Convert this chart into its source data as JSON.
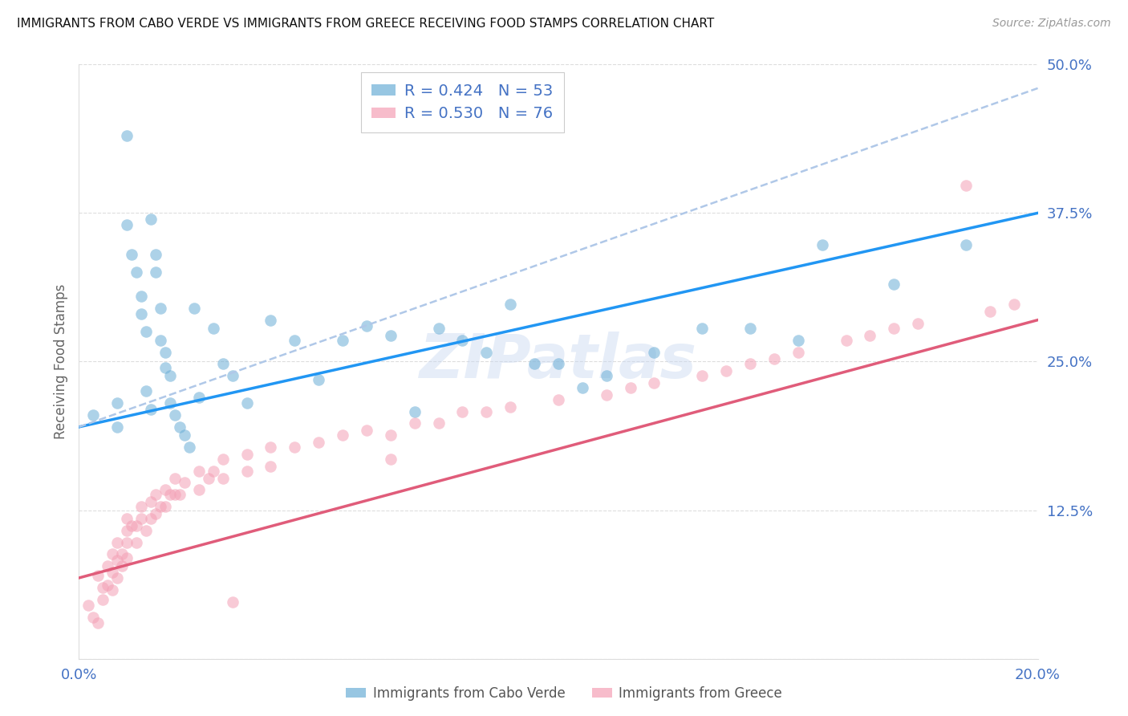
{
  "title": "IMMIGRANTS FROM CABO VERDE VS IMMIGRANTS FROM GREECE RECEIVING FOOD STAMPS CORRELATION CHART",
  "source": "Source: ZipAtlas.com",
  "ylabel": "Receiving Food Stamps",
  "xlim": [
    0.0,
    0.2
  ],
  "ylim": [
    0.0,
    0.5
  ],
  "xticks": [
    0.0,
    0.05,
    0.1,
    0.15,
    0.2
  ],
  "xtick_labels": [
    "0.0%",
    "",
    "",
    "",
    "20.0%"
  ],
  "yticks": [
    0.0,
    0.125,
    0.25,
    0.375,
    0.5
  ],
  "ytick_labels": [
    "",
    "12.5%",
    "25.0%",
    "37.5%",
    "50.0%"
  ],
  "cabo_verde_R": 0.424,
  "cabo_verde_N": 53,
  "greece_R": 0.53,
  "greece_N": 76,
  "cabo_verde_color": "#6baed6",
  "greece_color": "#f4a0b5",
  "cabo_verde_line_color": "#2196F3",
  "greece_line_color": "#e05c7a",
  "dashed_line_color": "#b0c8e8",
  "watermark": "ZIPatlas",
  "cabo_verde_x": [
    0.003,
    0.008,
    0.008,
    0.01,
    0.01,
    0.011,
    0.012,
    0.013,
    0.013,
    0.014,
    0.014,
    0.015,
    0.015,
    0.016,
    0.016,
    0.017,
    0.017,
    0.018,
    0.018,
    0.019,
    0.019,
    0.02,
    0.021,
    0.022,
    0.023,
    0.024,
    0.025,
    0.028,
    0.03,
    0.032,
    0.035,
    0.04,
    0.045,
    0.05,
    0.055,
    0.06,
    0.065,
    0.07,
    0.075,
    0.08,
    0.085,
    0.09,
    0.095,
    0.1,
    0.105,
    0.11,
    0.12,
    0.13,
    0.14,
    0.15,
    0.155,
    0.17,
    0.185
  ],
  "cabo_verde_y": [
    0.205,
    0.215,
    0.195,
    0.44,
    0.365,
    0.34,
    0.325,
    0.305,
    0.29,
    0.275,
    0.225,
    0.21,
    0.37,
    0.34,
    0.325,
    0.295,
    0.268,
    0.258,
    0.245,
    0.238,
    0.215,
    0.205,
    0.195,
    0.188,
    0.178,
    0.295,
    0.22,
    0.278,
    0.248,
    0.238,
    0.215,
    0.285,
    0.268,
    0.235,
    0.268,
    0.28,
    0.272,
    0.208,
    0.278,
    0.268,
    0.258,
    0.298,
    0.248,
    0.248,
    0.228,
    0.238,
    0.258,
    0.278,
    0.278,
    0.268,
    0.348,
    0.315,
    0.348
  ],
  "greece_x": [
    0.002,
    0.003,
    0.004,
    0.004,
    0.005,
    0.005,
    0.006,
    0.006,
    0.007,
    0.007,
    0.007,
    0.008,
    0.008,
    0.008,
    0.009,
    0.009,
    0.01,
    0.01,
    0.01,
    0.01,
    0.011,
    0.012,
    0.012,
    0.013,
    0.013,
    0.014,
    0.015,
    0.015,
    0.016,
    0.016,
    0.017,
    0.018,
    0.018,
    0.019,
    0.02,
    0.02,
    0.021,
    0.022,
    0.025,
    0.025,
    0.027,
    0.028,
    0.03,
    0.03,
    0.032,
    0.035,
    0.035,
    0.04,
    0.04,
    0.045,
    0.05,
    0.055,
    0.06,
    0.065,
    0.065,
    0.07,
    0.075,
    0.08,
    0.085,
    0.09,
    0.1,
    0.11,
    0.115,
    0.12,
    0.13,
    0.135,
    0.14,
    0.145,
    0.15,
    0.16,
    0.165,
    0.17,
    0.175,
    0.185,
    0.19,
    0.195
  ],
  "greece_y": [
    0.045,
    0.035,
    0.03,
    0.07,
    0.06,
    0.05,
    0.078,
    0.062,
    0.088,
    0.073,
    0.058,
    0.098,
    0.083,
    0.068,
    0.088,
    0.078,
    0.118,
    0.108,
    0.098,
    0.085,
    0.112,
    0.112,
    0.098,
    0.128,
    0.118,
    0.108,
    0.132,
    0.118,
    0.138,
    0.122,
    0.128,
    0.142,
    0.128,
    0.138,
    0.152,
    0.138,
    0.138,
    0.148,
    0.158,
    0.142,
    0.152,
    0.158,
    0.168,
    0.152,
    0.048,
    0.172,
    0.158,
    0.178,
    0.162,
    0.178,
    0.182,
    0.188,
    0.192,
    0.188,
    0.168,
    0.198,
    0.198,
    0.208,
    0.208,
    0.212,
    0.218,
    0.222,
    0.228,
    0.232,
    0.238,
    0.242,
    0.248,
    0.252,
    0.258,
    0.268,
    0.272,
    0.278,
    0.282,
    0.398,
    0.292,
    0.298
  ],
  "cabo_verde_trend_x": [
    0.0,
    0.2
  ],
  "cabo_verde_trend_y": [
    0.195,
    0.375
  ],
  "greece_trend_x": [
    0.0,
    0.2
  ],
  "greece_trend_y": [
    0.068,
    0.285
  ],
  "dashed_trend_x": [
    0.0,
    0.2
  ],
  "dashed_trend_y": [
    0.195,
    0.48
  ]
}
